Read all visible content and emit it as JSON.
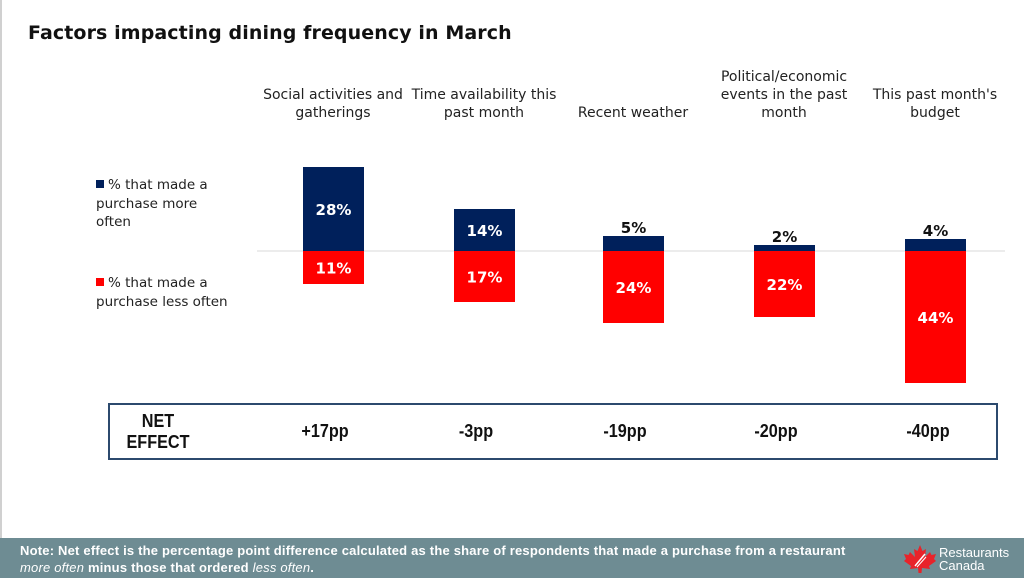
{
  "title": "Factors impacting dining frequency in March",
  "colors": {
    "more": "#00205b",
    "less": "#ff0000",
    "footer": "#6e8c93",
    "box_border": "#2c4a6e"
  },
  "legend": [
    {
      "label": "% that made a purchase more often",
      "color": "#00205b"
    },
    {
      "label": "% that made a purchase less often",
      "color": "#ff0000"
    }
  ],
  "net_effect_label": "NET EFFECT",
  "note": {
    "prefix": "Note: Net effect is the percentage point difference calculated as the share of respondents that made a purchase from a restaurant ",
    "em1": "more often",
    "middle": " minus those that ordered ",
    "em2": "less often",
    "suffix": "."
  },
  "logo": {
    "line1": "Restaurants",
    "line2": "Canada"
  },
  "chart_data": {
    "type": "bar",
    "title": "Factors impacting dining frequency in March",
    "categories": [
      "Social activities and gatherings",
      "Time availability this past month",
      "Recent weather",
      "Political/economic events in the past month",
      "This past month's budget"
    ],
    "series": [
      {
        "name": "% that made a purchase more often",
        "values": [
          28,
          14,
          5,
          2,
          4
        ],
        "labels": [
          "28%",
          "14%",
          "5%",
          "2%",
          "4%"
        ]
      },
      {
        "name": "% that made a purchase less often",
        "values": [
          11,
          17,
          24,
          22,
          44
        ],
        "labels": [
          "11%",
          "17%",
          "24%",
          "22%",
          "44%"
        ]
      }
    ],
    "net_effect": [
      "+17pp",
      "-3pp",
      "-19pp",
      "-20pp",
      "-40pp"
    ],
    "xlabel": "",
    "ylabel": "",
    "ylim": [
      -44,
      28
    ],
    "grid": false,
    "legend_position": "left"
  }
}
